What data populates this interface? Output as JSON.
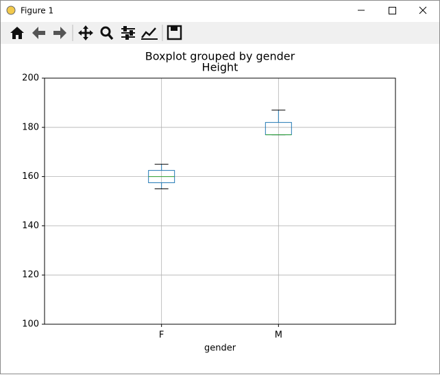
{
  "window": {
    "title": "Figure 1"
  },
  "chart_data": {
    "type": "box",
    "suptitle": "Boxplot grouped by gender",
    "title": "Height",
    "x_label": "gender",
    "categories": [
      "F",
      "M"
    ],
    "boxes": [
      {
        "whislo": 155,
        "q1": 157.5,
        "med": 160,
        "q3": 162.5,
        "whishi": 165
      },
      {
        "whislo": 177,
        "q1": 177,
        "med": 177,
        "q3": 182,
        "whishi": 187
      }
    ],
    "colors": {
      "box": "#1f77b4",
      "median": "#2ca02c",
      "whisker": "#1f77b4",
      "cap": "#000000"
    },
    "ylim": [
      100,
      200
    ],
    "yticks": [
      100,
      120,
      140,
      160,
      180,
      200
    ],
    "grid": true
  }
}
